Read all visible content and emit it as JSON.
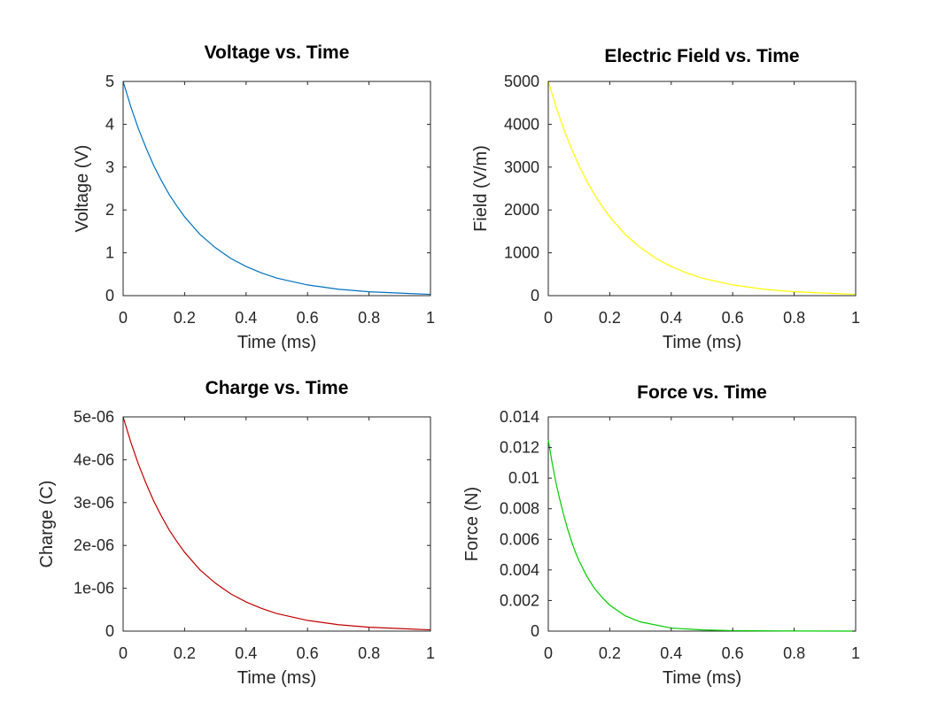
{
  "chart_data": [
    {
      "type": "line",
      "title": "Voltage vs. Time",
      "xlabel": "Time (ms)",
      "ylabel": "Voltage (V)",
      "xlim": [
        0,
        1
      ],
      "ylim": [
        0,
        5
      ],
      "xticks": [
        0,
        0.2,
        0.4,
        0.6,
        0.8,
        1
      ],
      "xtick_labels": [
        "0",
        "0.2",
        "0.4",
        "0.6",
        "0.8",
        "1"
      ],
      "yticks": [
        0,
        1,
        2,
        3,
        4,
        5
      ],
      "ytick_labels": [
        "0",
        "1",
        "2",
        "3",
        "4",
        "5"
      ],
      "grid": false,
      "color": "#0072bd",
      "series": [
        {
          "x": [
            0,
            0.025,
            0.05,
            0.075,
            0.1,
            0.125,
            0.15,
            0.175,
            0.2,
            0.25,
            0.3,
            0.35,
            0.4,
            0.45,
            0.5,
            0.6,
            0.7,
            0.8,
            0.9,
            1.0
          ],
          "values": [
            5.0,
            4.41,
            3.89,
            3.44,
            3.03,
            2.68,
            2.36,
            2.09,
            1.84,
            1.43,
            1.12,
            0.87,
            0.68,
            0.53,
            0.41,
            0.25,
            0.15,
            0.09,
            0.06,
            0.03
          ]
        }
      ]
    },
    {
      "type": "line",
      "title": "Electric Field vs. Time",
      "xlabel": "Time (ms)",
      "ylabel": "Field (V/m)",
      "xlim": [
        0,
        1
      ],
      "ylim": [
        0,
        5000
      ],
      "xticks": [
        0,
        0.2,
        0.4,
        0.6,
        0.8,
        1
      ],
      "xtick_labels": [
        "0",
        "0.2",
        "0.4",
        "0.6",
        "0.8",
        "1"
      ],
      "yticks": [
        0,
        1000,
        2000,
        3000,
        4000,
        5000
      ],
      "ytick_labels": [
        "0",
        "1000",
        "2000",
        "3000",
        "4000",
        "5000"
      ],
      "grid": false,
      "color": "#ffff00",
      "series": [
        {
          "x": [
            0,
            0.025,
            0.05,
            0.075,
            0.1,
            0.125,
            0.15,
            0.175,
            0.2,
            0.25,
            0.3,
            0.35,
            0.4,
            0.45,
            0.5,
            0.6,
            0.7,
            0.8,
            0.9,
            1.0
          ],
          "values": [
            5000,
            4410,
            3890,
            3440,
            3030,
            2680,
            2360,
            2090,
            1840,
            1430,
            1120,
            870,
            680,
            530,
            410,
            250,
            150,
            90,
            60,
            30
          ]
        }
      ]
    },
    {
      "type": "line",
      "title": "Charge vs. Time",
      "xlabel": "Time (ms)",
      "ylabel": "Charge (C)",
      "xlim": [
        0,
        1
      ],
      "ylim": [
        0,
        5e-06
      ],
      "xticks": [
        0,
        0.2,
        0.4,
        0.6,
        0.8,
        1
      ],
      "xtick_labels": [
        "0",
        "0.2",
        "0.4",
        "0.6",
        "0.8",
        "1"
      ],
      "yticks": [
        0,
        1e-06,
        2e-06,
        3e-06,
        4e-06,
        5e-06
      ],
      "ytick_labels": [
        "0",
        "1e-06",
        "2e-06",
        "3e-06",
        "4e-06",
        "5e-06"
      ],
      "grid": false,
      "color": "#c00000",
      "series": [
        {
          "x": [
            0,
            0.025,
            0.05,
            0.075,
            0.1,
            0.125,
            0.15,
            0.175,
            0.2,
            0.25,
            0.3,
            0.35,
            0.4,
            0.45,
            0.5,
            0.6,
            0.7,
            0.8,
            0.9,
            1.0
          ],
          "values": [
            5e-06,
            4.41e-06,
            3.89e-06,
            3.44e-06,
            3.03e-06,
            2.68e-06,
            2.36e-06,
            2.09e-06,
            1.84e-06,
            1.43e-06,
            1.12e-06,
            8.7e-07,
            6.8e-07,
            5.3e-07,
            4.1e-07,
            2.5e-07,
            1.5e-07,
            9e-08,
            6e-08,
            3e-08
          ]
        }
      ]
    },
    {
      "type": "line",
      "title": "Force vs. Time",
      "xlabel": "Time (ms)",
      "ylabel": "Force (N)",
      "xlim": [
        0,
        1
      ],
      "ylim": [
        0,
        0.014
      ],
      "xticks": [
        0,
        0.2,
        0.4,
        0.6,
        0.8,
        1
      ],
      "xtick_labels": [
        "0",
        "0.2",
        "0.4",
        "0.6",
        "0.8",
        "1"
      ],
      "yticks": [
        0,
        0.002,
        0.004,
        0.006,
        0.008,
        0.01,
        0.012,
        0.014
      ],
      "ytick_labels": [
        "0",
        "0.002",
        "0.004",
        "0.006",
        "0.008",
        "0.01",
        "0.012",
        "0.014"
      ],
      "grid": false,
      "color": "#00cc00",
      "series": [
        {
          "x": [
            0,
            0.0125,
            0.025,
            0.0375,
            0.05,
            0.0625,
            0.075,
            0.0875,
            0.1,
            0.125,
            0.15,
            0.175,
            0.2,
            0.25,
            0.3,
            0.4,
            0.5,
            0.6,
            0.8,
            1.0
          ],
          "values": [
            0.0125,
            0.011,
            0.0097,
            0.0086,
            0.0076,
            0.0067,
            0.0059,
            0.0052,
            0.0046,
            0.0036,
            0.0028,
            0.0022,
            0.0017,
            0.001,
            0.0006,
            0.0002,
            8e-05,
            3e-05,
            5e-06,
            1e-06
          ]
        }
      ]
    }
  ]
}
